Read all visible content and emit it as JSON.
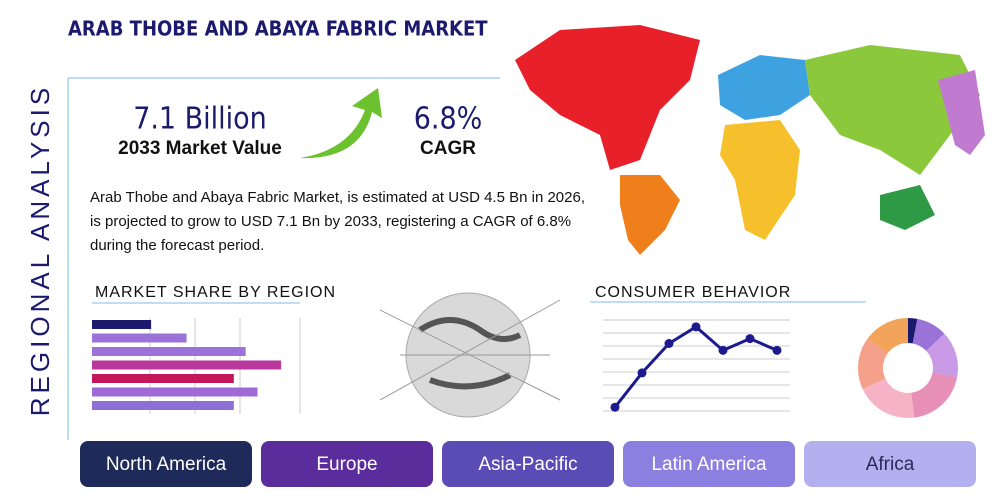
{
  "header": {
    "title": "ARAB THOBE AND ABAYA FABRIC MARKET",
    "side_label": "REGIONAL ANALYSIS"
  },
  "kpis": [
    {
      "value": "7.1 Billion",
      "label": "2033 Market Value"
    },
    {
      "value": "6.8%",
      "label": "CAGR"
    }
  ],
  "description": "Arab Thobe and Abaya Fabric Market, is estimated at USD 4.5 Bn in 2026, is projected to grow to USD 7.1 Bn by 2033, registering a CAGR of 6.8% during the forecast period.",
  "market_share": {
    "title": "MARKET SHARE BY REGION",
    "values": [
      30,
      48,
      78,
      96,
      72,
      84,
      72
    ],
    "colors": [
      "#1c1a6e",
      "#9b72d8",
      "#9b72d8",
      "#b8389e",
      "#c2185b",
      "#a06ad6",
      "#8e6fd6"
    ]
  },
  "consumer_behavior": {
    "title": "CONSUMER BEHAVIOR",
    "values": [
      10,
      45,
      75,
      92,
      68,
      80,
      68
    ],
    "color": "#1c1a8e"
  },
  "donut": {
    "values": [
      3,
      10,
      15,
      20,
      20,
      17,
      15
    ],
    "colors": [
      "#1c1a6e",
      "#9b72d8",
      "#c99be6",
      "#e88fb8",
      "#f7b3c6",
      "#f4a08a",
      "#f2a55a"
    ]
  },
  "regions": [
    {
      "label": "North America",
      "color": "#1d2a5a"
    },
    {
      "label": "Europe",
      "color": "#5b2c9c"
    },
    {
      "label": "Asia-Pacific",
      "color": "#5a4bb5"
    },
    {
      "label": "Latin America",
      "color": "#8b7fe0"
    },
    {
      "label": "Africa",
      "color": "#b4b0ef"
    }
  ]
}
